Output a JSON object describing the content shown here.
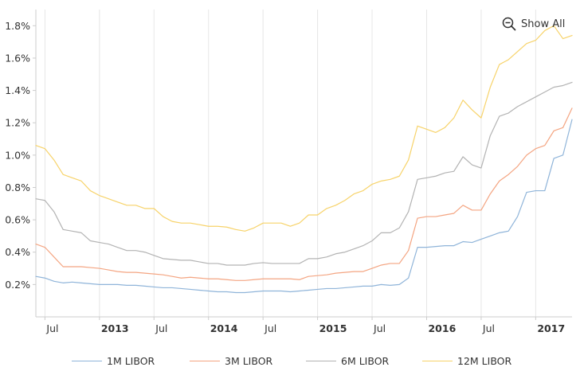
{
  "controls": {
    "show_all_label": "Show All",
    "zoom_icon": "zoom-out-icon"
  },
  "chart_data": {
    "type": "line",
    "title": "",
    "xlabel": "",
    "ylabel": "",
    "x_start": "2012-06",
    "x_end": "2017-05",
    "ylim": [
      0.0,
      1.9
    ],
    "y_ticks": [
      "0.2%",
      "0.4%",
      "0.6%",
      "0.8%",
      "1.0%",
      "1.2%",
      "1.4%",
      "1.6%",
      "1.8%"
    ],
    "y_tick_values": [
      0.2,
      0.4,
      0.6,
      0.8,
      1.0,
      1.2,
      1.4,
      1.6,
      1.8
    ],
    "x_ticks": [
      {
        "label": "Jul",
        "date": "2012-07",
        "year": false
      },
      {
        "label": "2013",
        "date": "2013-01",
        "year": true
      },
      {
        "label": "Jul",
        "date": "2013-07",
        "year": false
      },
      {
        "label": "2014",
        "date": "2014-01",
        "year": true
      },
      {
        "label": "Jul",
        "date": "2014-07",
        "year": false
      },
      {
        "label": "2015",
        "date": "2015-01",
        "year": true
      },
      {
        "label": "Jul",
        "date": "2015-07",
        "year": false
      },
      {
        "label": "2016",
        "date": "2016-01",
        "year": true
      },
      {
        "label": "Jul",
        "date": "2016-07",
        "year": false
      },
      {
        "label": "2017",
        "date": "2017-01",
        "year": true
      }
    ],
    "grid": {
      "vertical": true,
      "horizontal": false
    },
    "legend": "bottom",
    "x": [
      "2012-06",
      "2012-07",
      "2012-08",
      "2012-09",
      "2012-10",
      "2012-11",
      "2012-12",
      "2013-01",
      "2013-02",
      "2013-03",
      "2013-04",
      "2013-05",
      "2013-06",
      "2013-07",
      "2013-08",
      "2013-09",
      "2013-10",
      "2013-11",
      "2013-12",
      "2014-01",
      "2014-02",
      "2014-03",
      "2014-04",
      "2014-05",
      "2014-06",
      "2014-07",
      "2014-08",
      "2014-09",
      "2014-10",
      "2014-11",
      "2014-12",
      "2015-01",
      "2015-02",
      "2015-03",
      "2015-04",
      "2015-05",
      "2015-06",
      "2015-07",
      "2015-08",
      "2015-09",
      "2015-10",
      "2015-11",
      "2015-12",
      "2016-01",
      "2016-02",
      "2016-03",
      "2016-04",
      "2016-05",
      "2016-06",
      "2016-07",
      "2016-08",
      "2016-09",
      "2016-10",
      "2016-11",
      "2016-12",
      "2017-01",
      "2017-02",
      "2017-03",
      "2017-04",
      "2017-05"
    ],
    "series": [
      {
        "name": "1M LIBOR",
        "color": "#8fb4d9",
        "values": [
          0.25,
          0.24,
          0.22,
          0.21,
          0.215,
          0.21,
          0.205,
          0.2,
          0.2,
          0.2,
          0.195,
          0.195,
          0.19,
          0.185,
          0.18,
          0.18,
          0.175,
          0.17,
          0.165,
          0.16,
          0.155,
          0.155,
          0.15,
          0.15,
          0.155,
          0.16,
          0.16,
          0.16,
          0.155,
          0.16,
          0.165,
          0.17,
          0.175,
          0.175,
          0.18,
          0.185,
          0.19,
          0.19,
          0.2,
          0.195,
          0.2,
          0.24,
          0.43,
          0.43,
          0.435,
          0.44,
          0.44,
          0.465,
          0.46,
          0.48,
          0.5,
          0.52,
          0.53,
          0.62,
          0.77,
          0.78,
          0.78,
          0.98,
          1.0,
          1.22
        ]
      },
      {
        "name": "3M LIBOR",
        "color": "#f4a582",
        "values": [
          0.45,
          0.43,
          0.37,
          0.31,
          0.31,
          0.31,
          0.305,
          0.3,
          0.29,
          0.28,
          0.275,
          0.275,
          0.27,
          0.265,
          0.26,
          0.25,
          0.24,
          0.245,
          0.24,
          0.235,
          0.235,
          0.23,
          0.225,
          0.225,
          0.23,
          0.235,
          0.235,
          0.235,
          0.235,
          0.23,
          0.25,
          0.255,
          0.26,
          0.27,
          0.275,
          0.28,
          0.28,
          0.3,
          0.32,
          0.33,
          0.33,
          0.41,
          0.61,
          0.62,
          0.62,
          0.63,
          0.64,
          0.69,
          0.66,
          0.66,
          0.76,
          0.84,
          0.88,
          0.93,
          1.0,
          1.04,
          1.06,
          1.15,
          1.17,
          1.29
        ]
      },
      {
        "name": "6M LIBOR",
        "color": "#b3b3b3",
        "values": [
          0.73,
          0.72,
          0.65,
          0.54,
          0.53,
          0.52,
          0.47,
          0.46,
          0.45,
          0.43,
          0.41,
          0.41,
          0.4,
          0.38,
          0.36,
          0.355,
          0.35,
          0.35,
          0.34,
          0.33,
          0.33,
          0.32,
          0.32,
          0.32,
          0.33,
          0.335,
          0.33,
          0.33,
          0.33,
          0.33,
          0.36,
          0.36,
          0.37,
          0.39,
          0.4,
          0.42,
          0.44,
          0.47,
          0.52,
          0.52,
          0.55,
          0.65,
          0.85,
          0.86,
          0.87,
          0.89,
          0.9,
          0.99,
          0.94,
          0.92,
          1.12,
          1.24,
          1.26,
          1.3,
          1.33,
          1.36,
          1.39,
          1.42,
          1.43,
          1.45
        ]
      },
      {
        "name": "12M LIBOR",
        "color": "#f7d36a",
        "values": [
          1.06,
          1.04,
          0.97,
          0.88,
          0.86,
          0.84,
          0.78,
          0.75,
          0.73,
          0.71,
          0.69,
          0.69,
          0.67,
          0.67,
          0.62,
          0.59,
          0.58,
          0.58,
          0.57,
          0.56,
          0.56,
          0.555,
          0.54,
          0.53,
          0.55,
          0.58,
          0.58,
          0.58,
          0.56,
          0.58,
          0.63,
          0.63,
          0.67,
          0.69,
          0.72,
          0.76,
          0.78,
          0.82,
          0.84,
          0.85,
          0.87,
          0.97,
          1.18,
          1.16,
          1.14,
          1.17,
          1.23,
          1.34,
          1.28,
          1.23,
          1.42,
          1.56,
          1.59,
          1.64,
          1.69,
          1.71,
          1.77,
          1.8,
          1.72,
          1.74
        ]
      }
    ]
  }
}
